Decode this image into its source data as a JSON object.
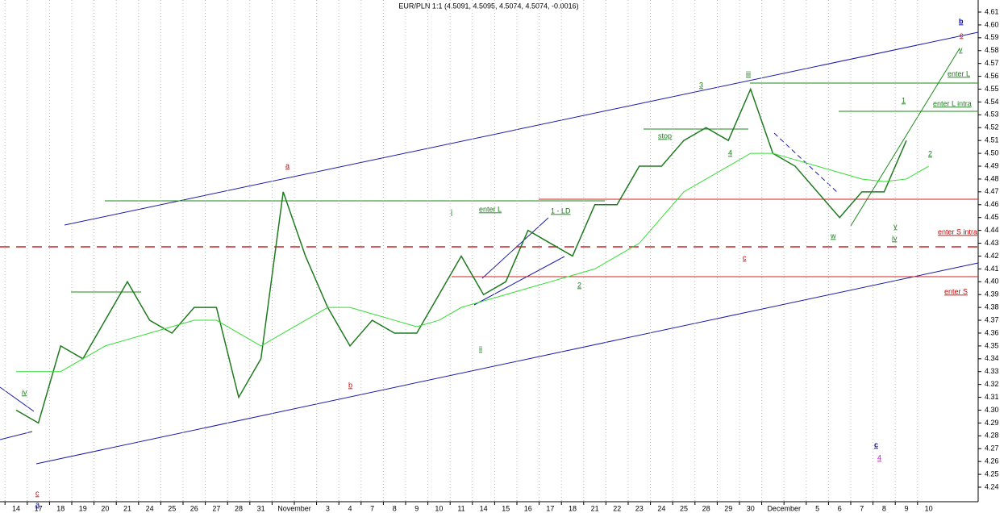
{
  "chart_data": {
    "type": "line",
    "title": "EUR/PLN 1:1 (4.5091, 4.5095, 4.5074, 4.5074, -0.0016)",
    "categories": [
      "14",
      "17",
      "18",
      "19",
      "20",
      "21",
      "24",
      "25",
      "26",
      "27",
      "28",
      "31",
      "November",
      null,
      "3",
      "4",
      "7",
      "8",
      "9",
      "10",
      "11",
      "14",
      "15",
      "16",
      "17",
      "18",
      "21",
      "22",
      "23",
      "24",
      "25",
      "28",
      "29",
      "30",
      "December",
      null,
      "5",
      "6",
      "7",
      "8",
      "9",
      "10"
    ],
    "series": [
      {
        "color": "#1f7a1f",
        "values": [
          4.3,
          4.29,
          4.35,
          4.34,
          4.37,
          4.4,
          4.37,
          4.36,
          4.38,
          4.38,
          4.31,
          4.34,
          4.47,
          4.42,
          4.38,
          4.35,
          4.37,
          4.36,
          4.36,
          4.39,
          4.42,
          4.39,
          4.4,
          4.44,
          4.43,
          4.42,
          4.46,
          4.46,
          4.49,
          4.49,
          4.51,
          4.52,
          4.51,
          4.55,
          4.5,
          4.49,
          4.47,
          4.45,
          4.47,
          4.47,
          4.51,
          null
        ]
      },
      {
        "color": "#33dd33",
        "values": [
          4.33,
          4.33,
          4.33,
          4.34,
          4.35,
          4.355,
          4.36,
          4.365,
          4.37,
          4.37,
          4.36,
          4.35,
          4.36,
          4.37,
          4.38,
          4.38,
          4.375,
          4.37,
          4.365,
          4.37,
          4.38,
          4.385,
          4.39,
          4.395,
          4.4,
          4.405,
          4.41,
          4.42,
          4.43,
          4.45,
          4.47,
          4.48,
          4.49,
          4.5,
          4.5,
          4.495,
          4.49,
          4.485,
          4.48,
          4.478,
          4.48,
          4.49
        ]
      }
    ],
    "ylim": [
      4.24,
      4.61
    ],
    "yticks": [
      4.24,
      4.25,
      4.26,
      4.27,
      4.28,
      4.29,
      {
        "value": 4.3,
        "label": "4.30"
      },
      4.31,
      4.32,
      4.33,
      4.34,
      4.35,
      4.36,
      4.37,
      4.38,
      4.39,
      {
        "value": 4.4,
        "label": "4.40"
      },
      4.41,
      4.42,
      4.43,
      4.44,
      4.45,
      4.46,
      4.47,
      4.48,
      4.49,
      {
        "value": 4.5,
        "label": "4.50"
      },
      4.51,
      4.52,
      4.53,
      4.54,
      4.55,
      4.56,
      4.57,
      4.58,
      4.59,
      {
        "value": 4.6,
        "label": "4.60"
      },
      4.61
    ],
    "annotations": [
      {
        "text": "a",
        "color": "#cc0000"
      },
      {
        "text": "a",
        "color": "#0000cc"
      },
      {
        "text": "c",
        "color": "#cc0000"
      },
      {
        "text": "iv",
        "color": "#1a7a1a"
      },
      {
        "text": "b",
        "color": "#cc0000"
      },
      {
        "text": "i",
        "color": "#1a7a1a"
      },
      {
        "text": "ii",
        "color": "#1a7a1a"
      },
      {
        "text": "1 - LD",
        "color": "#1a7a1a"
      },
      {
        "text": "enter L",
        "color": "#1a7a1a"
      },
      {
        "text": "2",
        "color": "#1a7a1a"
      },
      {
        "text": "stop",
        "color": "#1a7a1a"
      },
      {
        "text": "3",
        "color": "#1a7a1a"
      },
      {
        "text": "4",
        "color": "#1a7a1a"
      },
      {
        "text": "iii",
        "color": "#1a7a1a"
      },
      {
        "text": "w",
        "color": "#1a7a1a"
      },
      {
        "text": "y",
        "color": "#1a7a1a"
      },
      {
        "text": "iv",
        "color": "#1a7a1a"
      },
      {
        "text": "1",
        "color": "#1a7a1a"
      },
      {
        "text": "enter L intra",
        "color": "#1a7a1a"
      },
      {
        "text": "enter L",
        "color": "#1a7a1a"
      },
      {
        "text": "v",
        "color": "#1a7a1a"
      },
      {
        "text": "2",
        "color": "#1a7a1a"
      },
      {
        "text": "b",
        "color": "#0000aa"
      },
      {
        "text": "c",
        "color": "#cc0000"
      },
      {
        "text": "enter S intra",
        "color": "#cc0000"
      },
      {
        "text": "enter S",
        "color": "#cc0000"
      },
      {
        "text": "c",
        "color": "#0000aa"
      },
      {
        "text": "4",
        "color": "#dd00dd"
      },
      {
        "text": "c",
        "color": "#cc0000"
      }
    ]
  }
}
